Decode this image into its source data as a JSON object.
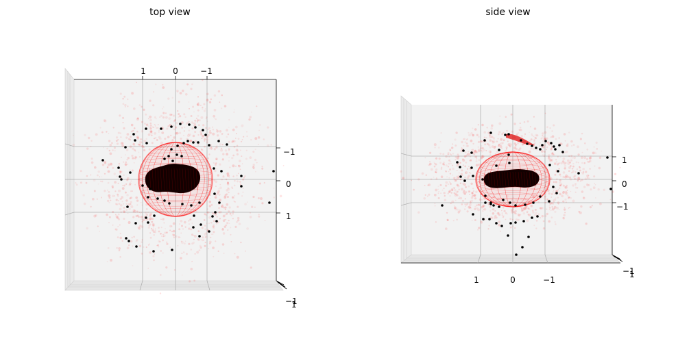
{
  "chart_data": [
    {
      "type": "scatter",
      "title": "top view",
      "projection": "3d",
      "grid": true,
      "top_ticks": [
        "1",
        "0",
        "−1"
      ],
      "right_ticks": [
        "−1",
        "0",
        "1"
      ],
      "corner_ticks": [
        "−1",
        "1"
      ],
      "sphere_color": "#ff0000",
      "body_color": "#000000",
      "cloud_color": "#ff0000",
      "point_color": "#000000"
    },
    {
      "type": "scatter",
      "title": "side view",
      "projection": "3d",
      "grid": true,
      "bottom_ticks": [
        "1",
        "0",
        "−1"
      ],
      "right_ticks": [
        "1",
        "0",
        "−1"
      ],
      "corner_ticks": [
        "−1",
        "1"
      ],
      "sphere_color": "#ff0000",
      "body_color": "#000000",
      "cloud_color": "#ff0000",
      "point_color": "#000000"
    }
  ]
}
